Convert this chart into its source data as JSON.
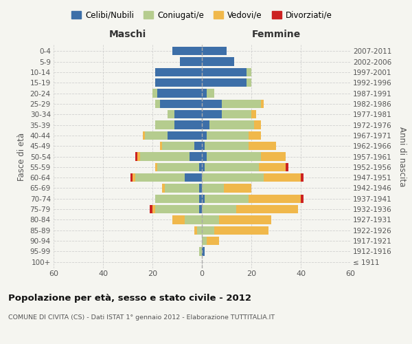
{
  "age_groups": [
    "100+",
    "95-99",
    "90-94",
    "85-89",
    "80-84",
    "75-79",
    "70-74",
    "65-69",
    "60-64",
    "55-59",
    "50-54",
    "45-49",
    "40-44",
    "35-39",
    "30-34",
    "25-29",
    "20-24",
    "15-19",
    "10-14",
    "5-9",
    "0-4"
  ],
  "birth_years": [
    "≤ 1911",
    "1912-1916",
    "1917-1921",
    "1922-1926",
    "1927-1931",
    "1932-1936",
    "1937-1941",
    "1942-1946",
    "1947-1951",
    "1952-1956",
    "1957-1961",
    "1962-1966",
    "1967-1971",
    "1972-1976",
    "1977-1981",
    "1982-1986",
    "1987-1991",
    "1992-1996",
    "1997-2001",
    "2002-2006",
    "2007-2011"
  ],
  "male": {
    "celibi": [
      0,
      0,
      0,
      0,
      0,
      1,
      1,
      1,
      7,
      1,
      5,
      3,
      14,
      11,
      11,
      17,
      18,
      19,
      19,
      9,
      12
    ],
    "coniugati": [
      0,
      1,
      0,
      2,
      7,
      18,
      18,
      14,
      20,
      17,
      20,
      13,
      9,
      8,
      3,
      2,
      2,
      0,
      0,
      0,
      0
    ],
    "vedovi": [
      0,
      0,
      0,
      1,
      5,
      1,
      0,
      1,
      1,
      1,
      1,
      1,
      1,
      0,
      0,
      0,
      0,
      0,
      0,
      0,
      0
    ],
    "divorziati": [
      0,
      0,
      0,
      0,
      0,
      1,
      0,
      0,
      1,
      0,
      1,
      0,
      0,
      0,
      0,
      0,
      0,
      0,
      0,
      0,
      0
    ]
  },
  "female": {
    "nubili": [
      0,
      1,
      0,
      0,
      0,
      0,
      1,
      0,
      0,
      1,
      2,
      1,
      2,
      3,
      8,
      8,
      2,
      18,
      18,
      13,
      10
    ],
    "coniugate": [
      0,
      0,
      2,
      5,
      7,
      14,
      18,
      9,
      25,
      22,
      22,
      18,
      17,
      18,
      12,
      16,
      3,
      2,
      2,
      0,
      0
    ],
    "vedove": [
      0,
      0,
      5,
      22,
      21,
      25,
      21,
      11,
      15,
      11,
      10,
      11,
      5,
      3,
      2,
      1,
      0,
      0,
      0,
      0,
      0
    ],
    "divorziate": [
      0,
      0,
      0,
      0,
      0,
      0,
      1,
      0,
      1,
      1,
      0,
      0,
      0,
      0,
      0,
      0,
      0,
      0,
      0,
      0,
      0
    ]
  },
  "colors": {
    "celibi_nubili": "#3d6fa8",
    "coniugati": "#b5cc8e",
    "vedovi": "#f0b84b",
    "divorziati": "#cc2222"
  },
  "title": "Popolazione per età, sesso e stato civile - 2012",
  "subtitle": "COMUNE DI CIVITA (CS) - Dati ISTAT 1° gennaio 2012 - Elaborazione TUTTITALIA.IT",
  "xlabel_left": "Maschi",
  "xlabel_right": "Femmine",
  "ylabel_left": "Fasce di età",
  "ylabel_right": "Anni di nascita",
  "xlim": 60,
  "background_color": "#f5f5f0",
  "grid_color": "#cccccc",
  "legend_labels": [
    "Celibi/Nubili",
    "Coniugati/e",
    "Vedovi/e",
    "Divorziati/e"
  ]
}
